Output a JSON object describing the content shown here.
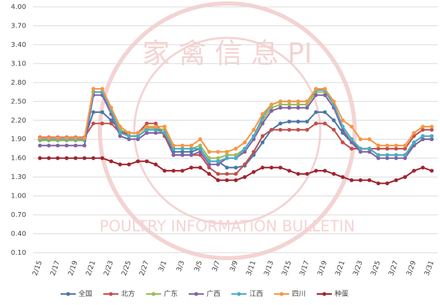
{
  "chart_data": {
    "type": "line",
    "categories": [
      "2/15",
      null,
      "2/17",
      null,
      "2/19",
      null,
      "2/21",
      null,
      "2/23",
      null,
      "2/25",
      null,
      "2/27",
      null,
      "3/1",
      null,
      "3/3",
      null,
      "3/5",
      null,
      "3/7",
      null,
      "3/9",
      null,
      "3/11",
      null,
      "3/13",
      null,
      "3/15",
      null,
      "3/17",
      null,
      "3/19",
      null,
      "3/21",
      null,
      "3/23",
      null,
      "3/25",
      null,
      "3/27",
      null,
      "3/29",
      null,
      "3/31"
    ],
    "series": [
      {
        "name": "全国",
        "color": "#4a78a8",
        "values": [
          1.9,
          1.9,
          1.9,
          1.9,
          1.9,
          1.9,
          2.33,
          2.33,
          2.2,
          2.05,
          1.95,
          1.95,
          2.05,
          2.05,
          2.05,
          1.7,
          1.7,
          1.7,
          1.75,
          1.55,
          1.55,
          1.45,
          1.45,
          1.48,
          1.65,
          1.85,
          2.05,
          2.15,
          2.18,
          2.18,
          2.18,
          2.33,
          2.33,
          2.2,
          2.0,
          1.85,
          1.75,
          1.75,
          1.65,
          1.65,
          1.65,
          1.65,
          1.8,
          1.9,
          1.9
        ]
      },
      {
        "name": "北方",
        "color": "#c0504d",
        "values": [
          1.93,
          1.93,
          1.93,
          1.93,
          1.93,
          1.93,
          2.15,
          2.15,
          2.15,
          2.0,
          2.0,
          2.0,
          2.15,
          2.15,
          1.95,
          1.65,
          1.65,
          1.65,
          1.65,
          1.45,
          1.35,
          1.35,
          1.35,
          1.5,
          1.7,
          1.95,
          2.05,
          2.05,
          2.05,
          2.05,
          2.05,
          2.15,
          2.15,
          2.05,
          1.85,
          1.75,
          1.75,
          1.75,
          1.75,
          1.75,
          1.75,
          1.75,
          1.95,
          2.05,
          2.05
        ]
      },
      {
        "name": "广东",
        "color": "#9bbb59",
        "values": [
          1.88,
          1.88,
          1.88,
          1.88,
          1.88,
          1.88,
          2.65,
          2.65,
          2.35,
          2.05,
          2.0,
          2.0,
          2.08,
          2.08,
          2.05,
          1.75,
          1.75,
          1.75,
          1.8,
          1.6,
          1.6,
          1.65,
          1.65,
          1.75,
          1.95,
          2.2,
          2.4,
          2.45,
          2.45,
          2.45,
          2.45,
          2.65,
          2.65,
          2.45,
          2.1,
          1.9,
          1.75,
          1.75,
          1.65,
          1.65,
          1.65,
          1.65,
          1.85,
          1.95,
          1.95
        ]
      },
      {
        "name": "广西",
        "color": "#8064a2",
        "values": [
          1.8,
          1.8,
          1.8,
          1.8,
          1.8,
          1.8,
          2.6,
          2.6,
          2.3,
          1.95,
          1.9,
          1.9,
          2.0,
          2.0,
          2.0,
          1.65,
          1.65,
          1.65,
          1.7,
          1.5,
          1.5,
          1.6,
          1.6,
          1.7,
          1.9,
          2.15,
          2.35,
          2.4,
          2.4,
          2.4,
          2.4,
          2.6,
          2.6,
          2.4,
          2.05,
          1.85,
          1.7,
          1.7,
          1.6,
          1.6,
          1.6,
          1.6,
          1.8,
          1.9,
          1.9
        ]
      },
      {
        "name": "江西",
        "color": "#4bacc6",
        "values": [
          1.9,
          1.9,
          1.9,
          1.9,
          1.9,
          1.9,
          2.65,
          2.65,
          2.35,
          2.0,
          1.95,
          1.95,
          2.05,
          2.05,
          2.0,
          1.75,
          1.75,
          1.75,
          1.75,
          1.55,
          1.55,
          1.6,
          1.6,
          1.75,
          1.95,
          2.25,
          2.45,
          2.5,
          2.5,
          2.5,
          2.5,
          2.68,
          2.68,
          2.45,
          2.1,
          1.9,
          1.75,
          1.75,
          1.65,
          1.65,
          1.65,
          1.65,
          1.85,
          1.95,
          1.95
        ]
      },
      {
        "name": "四川",
        "color": "#f79646",
        "values": [
          1.92,
          1.92,
          1.92,
          1.92,
          1.92,
          1.92,
          2.7,
          2.7,
          2.4,
          2.1,
          2.0,
          2.0,
          2.1,
          2.1,
          2.1,
          1.8,
          1.8,
          1.8,
          1.9,
          1.7,
          1.7,
          1.7,
          1.75,
          1.85,
          2.05,
          2.3,
          2.45,
          2.5,
          2.5,
          2.5,
          2.5,
          2.7,
          2.7,
          2.5,
          2.2,
          2.1,
          1.9,
          1.9,
          1.8,
          1.8,
          1.8,
          1.8,
          2.0,
          2.1,
          2.1
        ]
      },
      {
        "name": "种蛋",
        "color": "#a0242f",
        "values": [
          1.6,
          1.6,
          1.6,
          1.6,
          1.6,
          1.6,
          1.6,
          1.6,
          1.55,
          1.5,
          1.5,
          1.55,
          1.55,
          1.5,
          1.4,
          1.4,
          1.4,
          1.45,
          1.45,
          1.35,
          1.25,
          1.25,
          1.25,
          1.3,
          1.38,
          1.45,
          1.45,
          1.45,
          1.4,
          1.35,
          1.35,
          1.4,
          1.4,
          1.35,
          1.3,
          1.25,
          1.25,
          1.25,
          1.2,
          1.2,
          1.25,
          1.3,
          1.4,
          1.45,
          1.4
        ]
      }
    ],
    "ylim": [
      0.1,
      4.0
    ],
    "yticks": [
      {
        "value": 0.1,
        "label": "0.10"
      },
      {
        "value": 0.4,
        "label": "0.40"
      },
      {
        "value": 0.7,
        "label": "0.70"
      },
      {
        "value": 1.0,
        "label": "1.00"
      },
      {
        "value": 1.3,
        "label": "1.30"
      },
      {
        "value": 1.6,
        "label": "1.60"
      },
      {
        "value": 1.9,
        "label": "1.90"
      },
      {
        "value": 2.2,
        "label": "2.20"
      },
      {
        "value": 2.5,
        "label": "2.50"
      },
      {
        "value": 2.8,
        "label": "2.80"
      },
      {
        "value": 3.1,
        "label": "3.10"
      },
      {
        "value": 3.4,
        "label": "3.40"
      },
      {
        "value": 3.7,
        "label": "3.70"
      },
      {
        "value": 4.0,
        "label": "4.00"
      }
    ],
    "grid": true,
    "legend": "bottom",
    "watermark": [
      "家 禽 信 息 PI",
      "POULTRY INFORMATION BULLETIN"
    ]
  }
}
